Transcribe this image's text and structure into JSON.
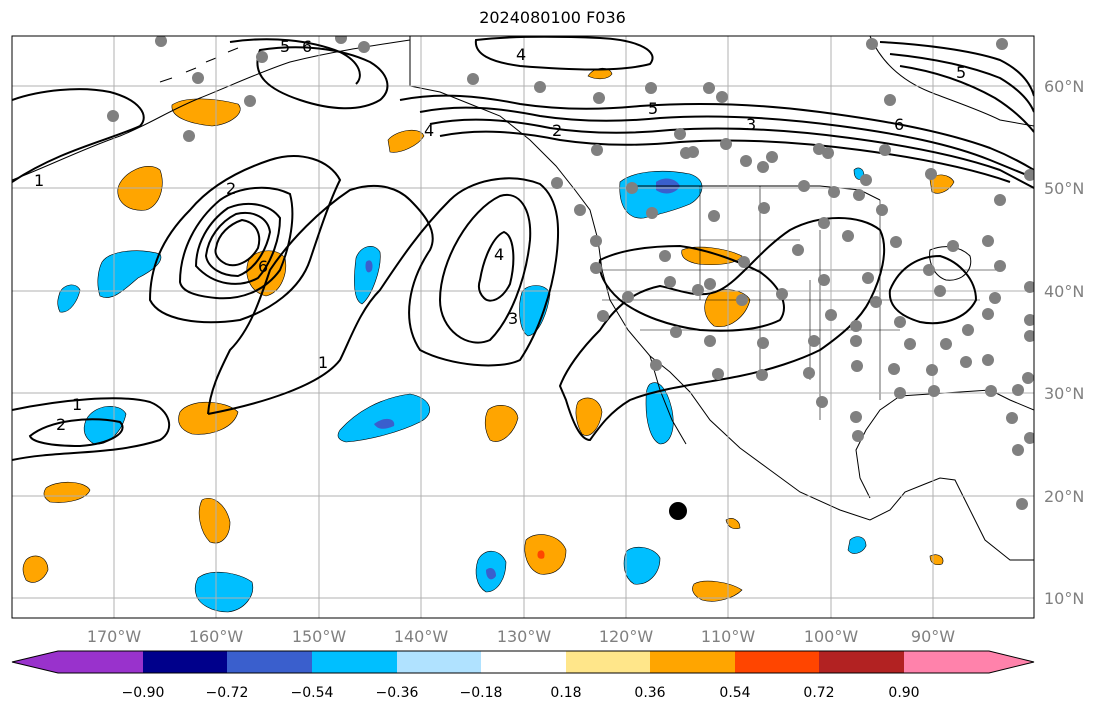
{
  "title": "2024080100 F036",
  "latitude_labels": [
    "60°N",
    "50°N",
    "40°N",
    "30°N",
    "20°N",
    "10°N"
  ],
  "longitude_labels": [
    "170°W",
    "160°W",
    "150°W",
    "140°W",
    "130°W",
    "120°W",
    "110°W",
    "100°W",
    "90°W"
  ],
  "colorbar": {
    "ticks": [
      "−0.90",
      "−0.72",
      "−0.54",
      "−0.36",
      "−0.18",
      "0.18",
      "0.36",
      "0.54",
      "0.72",
      "0.90"
    ],
    "colors": [
      "#9932CC",
      "#00008B",
      "#3A5FCD",
      "#00BFFF",
      "#B0E2FF",
      "#FFFFFF",
      "#FFE68A",
      "#FFA500",
      "#FF4500",
      "#B22222",
      "#FF82AB"
    ]
  },
  "contour_labels": [
    "1",
    "2",
    "3",
    "4",
    "5",
    "6"
  ],
  "colors": {
    "land_outline": "#000000",
    "station_dot": "#808080",
    "grid": "#b0b0b0"
  }
}
